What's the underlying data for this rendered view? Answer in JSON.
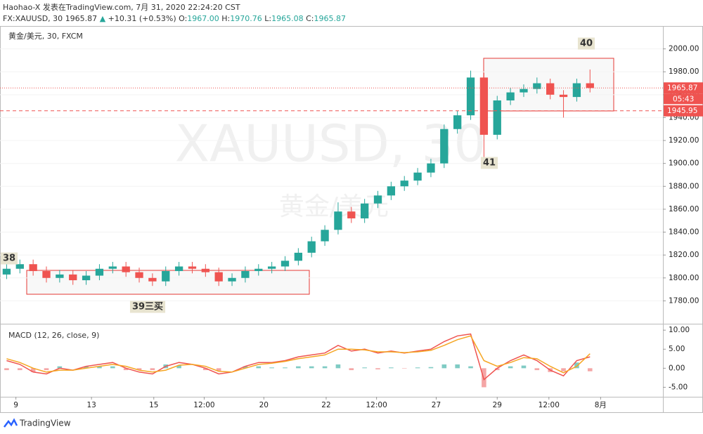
{
  "header": {
    "line1": "Haohao-X 发表在TradingView.com, 7月 31, 2020 22:24:20 CST",
    "symbol": "FX:XAUUSD, 30",
    "last": "1965.87",
    "arrow": "▲",
    "change": "+10.31 (+0.53%)",
    "ohlc": [
      {
        "label": "O:",
        "value": "1967.00"
      },
      {
        "label": "H:",
        "value": "1970.76"
      },
      {
        "label": "L:",
        "value": "1965.08"
      },
      {
        "label": "C:",
        "value": "1965.87"
      }
    ],
    "watermark": "XAUUSD, 30",
    "watermark_sub": "黄金/美元",
    "brand": "TradingView"
  },
  "chart_data": [
    {
      "type": "candlestick",
      "legend": "黄金/美元, 30, FXCM",
      "up_color": "#26a69a",
      "down_color": "#ef5350",
      "xlim": [
        -0.5,
        49.5
      ],
      "xticks": [
        {
          "value": 0.7,
          "label": "9"
        },
        {
          "value": 6.4,
          "label": "13"
        },
        {
          "value": 11.1,
          "label": "15"
        },
        {
          "value": 14.9,
          "label": "12:00"
        },
        {
          "value": 19.4,
          "label": "20"
        },
        {
          "value": 24.1,
          "label": "22"
        },
        {
          "value": 27.9,
          "label": "12:00"
        },
        {
          "value": 32.4,
          "label": "27"
        },
        {
          "value": 37.0,
          "label": "29"
        },
        {
          "value": 40.9,
          "label": "12:00"
        },
        {
          "value": 44.8,
          "label": "8月"
        }
      ],
      "ylim": [
        1760,
        2020
      ],
      "yticks": [
        {
          "value": 1780,
          "label": "1780.00"
        },
        {
          "value": 1800,
          "label": "1800.00"
        },
        {
          "value": 1820,
          "label": "1820.00"
        },
        {
          "value": 1840,
          "label": "1840.00"
        },
        {
          "value": 1860,
          "label": "1860.00"
        },
        {
          "value": 1880,
          "label": "1880.00"
        },
        {
          "value": 1900,
          "label": "1900.00"
        },
        {
          "value": 1920,
          "label": "1920.00"
        },
        {
          "value": 1940,
          "label": "1940.00"
        },
        {
          "value": 1960,
          "label": "1960.00"
        },
        {
          "value": 1980,
          "label": "1980.00"
        },
        {
          "value": 2000,
          "label": "2000.00"
        }
      ],
      "open": [
        1803,
        1808,
        1812,
        1806,
        1800,
        1803,
        1798,
        1802,
        1808,
        1810,
        1805,
        1800,
        1797,
        1806,
        1810,
        1808,
        1805,
        1797,
        1800,
        1806,
        1808,
        1810,
        1815,
        1822,
        1832,
        1842,
        1858,
        1852,
        1865,
        1872,
        1880,
        1885,
        1892,
        1900,
        1930,
        1942,
        1975,
        1925,
        1955,
        1962,
        1965,
        1970,
        1960,
        1958,
        1970
      ],
      "high": [
        1812,
        1816,
        1816,
        1810,
        1807,
        1807,
        1806,
        1812,
        1814,
        1814,
        1809,
        1804,
        1810,
        1814,
        1814,
        1812,
        1809,
        1804,
        1810,
        1812,
        1814,
        1819,
        1826,
        1836,
        1846,
        1866,
        1862,
        1869,
        1876,
        1884,
        1889,
        1896,
        1904,
        1934,
        1946,
        1981,
        1979,
        1959,
        1966,
        1969,
        1975,
        1974,
        1964,
        1974,
        1982
      ],
      "low": [
        1799,
        1804,
        1802,
        1796,
        1796,
        1794,
        1794,
        1798,
        1804,
        1801,
        1796,
        1793,
        1793,
        1802,
        1804,
        1801,
        1793,
        1793,
        1796,
        1802,
        1804,
        1806,
        1811,
        1818,
        1828,
        1838,
        1848,
        1848,
        1861,
        1868,
        1876,
        1881,
        1888,
        1896,
        1926,
        1938,
        1905,
        1921,
        1951,
        1958,
        1961,
        1956,
        1940,
        1954,
        1962
      ],
      "close": [
        1808,
        1812,
        1806,
        1800,
        1803,
        1798,
        1802,
        1808,
        1810,
        1805,
        1800,
        1797,
        1806,
        1810,
        1808,
        1805,
        1797,
        1800,
        1806,
        1808,
        1810,
        1815,
        1822,
        1832,
        1842,
        1858,
        1852,
        1865,
        1872,
        1880,
        1885,
        1892,
        1900,
        1930,
        1942,
        1975,
        1925,
        1955,
        1962,
        1965,
        1970,
        1960,
        1958,
        1970,
        1965.87
      ],
      "price_lines": [
        {
          "value": 1965.87,
          "color": "#ef5350",
          "style": "dotted"
        },
        {
          "value": 1945.95,
          "color": "#ef5350",
          "style": "dashed"
        }
      ],
      "countdown": "05:43",
      "annotations": [
        "38",
        "39三买",
        "40",
        "41"
      ]
    },
    {
      "type": "macd",
      "legend": "MACD (12, 26, close, 9)",
      "xlim": [
        -0.5,
        49.5
      ],
      "ylim": [
        -7.5,
        11.5
      ],
      "yticks": [
        {
          "value": 10,
          "label": "10.00"
        },
        {
          "value": 5,
          "label": "5.00"
        },
        {
          "value": 0,
          "label": "0.00"
        },
        {
          "value": -5,
          "label": "-5.00"
        }
      ],
      "series": [
        {
          "name": "MACD",
          "color": "#ef5350",
          "values": [
            2,
            1,
            -1,
            -1.5,
            0,
            -0.5,
            0.5,
            1,
            1.5,
            0,
            -1,
            -1.5,
            0.5,
            1.5,
            1,
            0,
            -1.5,
            -1,
            0.5,
            1.5,
            1.5,
            2,
            3,
            3.5,
            4,
            6,
            4.5,
            5,
            4,
            4.5,
            4,
            4.5,
            5,
            7,
            8.5,
            9,
            -3,
            0,
            2,
            3.5,
            2,
            -0.5,
            -2,
            2,
            3
          ]
        },
        {
          "name": "Signal",
          "color": "#f5a623",
          "values": [
            2.5,
            1.5,
            0,
            -1,
            -0.5,
            -0.5,
            0,
            0.5,
            1,
            0.5,
            -0.5,
            -1,
            -0.5,
            0.8,
            1,
            0.5,
            -0.8,
            -1,
            0,
            1,
            1.3,
            1.8,
            2.5,
            3,
            3.5,
            5,
            5,
            4.8,
            4.3,
            4.3,
            4.1,
            4.3,
            4.7,
            6,
            7.5,
            8.5,
            2,
            0.5,
            1.5,
            2.8,
            2.5,
            0.5,
            -1.2,
            0.5,
            3.8
          ]
        },
        {
          "name": "Histogram",
          "color": "#80cbc4",
          "neg_color": "#f4a6a6",
          "values": [
            -0.5,
            -0.5,
            -1,
            -0.5,
            0.5,
            0,
            0.5,
            0.5,
            0.5,
            -0.5,
            -0.5,
            -0.5,
            1,
            0.7,
            0,
            -0.5,
            -0.7,
            0,
            0.5,
            0.5,
            0.2,
            0.2,
            0.5,
            0.5,
            0.5,
            1,
            -0.5,
            0.2,
            -0.3,
            0.2,
            -0.1,
            0.2,
            0.3,
            1,
            1,
            0.5,
            -5,
            -0.5,
            0.5,
            0.7,
            -0.5,
            -1,
            -0.8,
            1.5,
            -0.8
          ]
        }
      ]
    }
  ]
}
